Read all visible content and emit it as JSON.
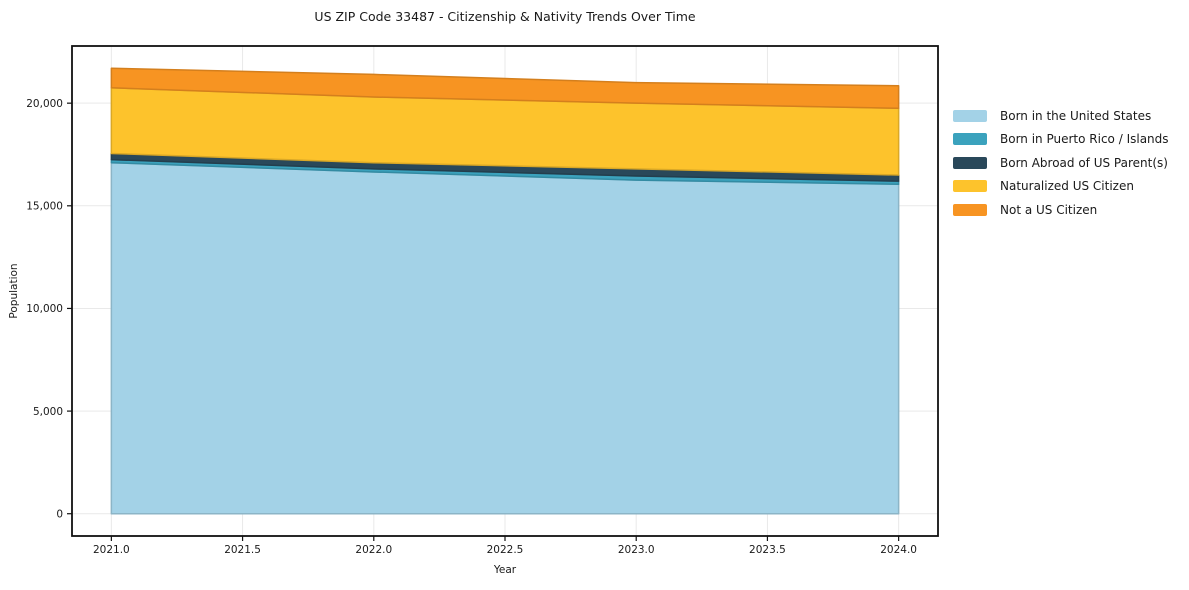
{
  "page": {
    "background": "#ffffff"
  },
  "chart_data": {
    "type": "area",
    "stacked": true,
    "title": "US ZIP Code 33487 - Citizenship & Nativity Trends Over Time",
    "xlabel": "Year",
    "ylabel": "Population",
    "x": [
      2021,
      2022,
      2023,
      2024
    ],
    "series": [
      {
        "name": "Born in the United States",
        "color": "#a3d2e7",
        "values": [
          17100,
          16650,
          16250,
          16050
        ]
      },
      {
        "name": "Born in Puerto Rico / Islands",
        "color": "#3ba2bd",
        "values": [
          150,
          150,
          200,
          150
        ]
      },
      {
        "name": "Born Abroad of US Parent(s)",
        "color": "#29485a",
        "values": [
          300,
          300,
          350,
          300
        ]
      },
      {
        "name": "Naturalized US Citizen",
        "color": "#fdc32c",
        "values": [
          3200,
          3200,
          3200,
          3250
        ]
      },
      {
        "name": "Not a US Citizen",
        "color": "#f79422",
        "values": [
          950,
          1100,
          1000,
          1100
        ]
      }
    ],
    "totals": [
      21700,
      21400,
      21000,
      20850
    ],
    "x_ticks": [
      {
        "value": 2021.0,
        "label": "2021.0"
      },
      {
        "value": 2021.5,
        "label": "2021.5"
      },
      {
        "value": 2022.0,
        "label": "2022.0"
      },
      {
        "value": 2022.5,
        "label": "2022.5"
      },
      {
        "value": 2023.0,
        "label": "2023.0"
      },
      {
        "value": 2023.5,
        "label": "2023.5"
      },
      {
        "value": 2024.0,
        "label": "2024.0"
      }
    ],
    "y_ticks": [
      {
        "value": 0,
        "label": "0"
      },
      {
        "value": 5000,
        "label": "5,000"
      },
      {
        "value": 10000,
        "label": "10,000"
      },
      {
        "value": 15000,
        "label": "15,000"
      },
      {
        "value": 20000,
        "label": "20,000"
      }
    ],
    "xlim": [
      2020.85,
      2024.15
    ],
    "ylim": [
      -1085,
      22785
    ],
    "grid": true,
    "grid_color": "#e9e9e9",
    "frame_color": "#111111",
    "legend_position": "right outside"
  }
}
